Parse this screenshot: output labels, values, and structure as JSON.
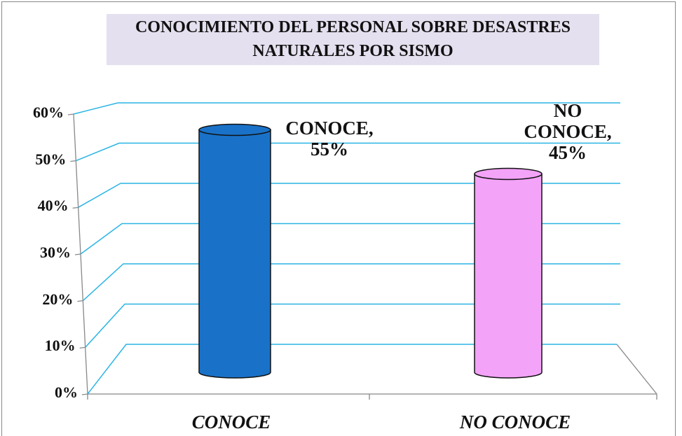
{
  "chart_data": {
    "type": "cylinder",
    "title": "CONOCIMIENTO DEL PERSONAL SOBRE DESASTRES\nNATURALES POR SISMO",
    "categories": [
      "CONOCE",
      "NO CONOCE"
    ],
    "values": [
      55,
      45
    ],
    "value_labels": [
      "CONOCE,\n55%",
      "NO\nCONOCE,\n45%"
    ],
    "colors": [
      "#1a72c8",
      "#f3a3f8"
    ],
    "ylim": [
      0,
      60
    ],
    "yticks": [
      {
        "value": 0,
        "label": "0%"
      },
      {
        "value": 10,
        "label": "10%"
      },
      {
        "value": 20,
        "label": "20%"
      },
      {
        "value": 30,
        "label": "30%"
      },
      {
        "value": 40,
        "label": "40%"
      },
      {
        "value": 50,
        "label": "50%"
      },
      {
        "value": 60,
        "label": "60%"
      }
    ],
    "grid": true
  }
}
